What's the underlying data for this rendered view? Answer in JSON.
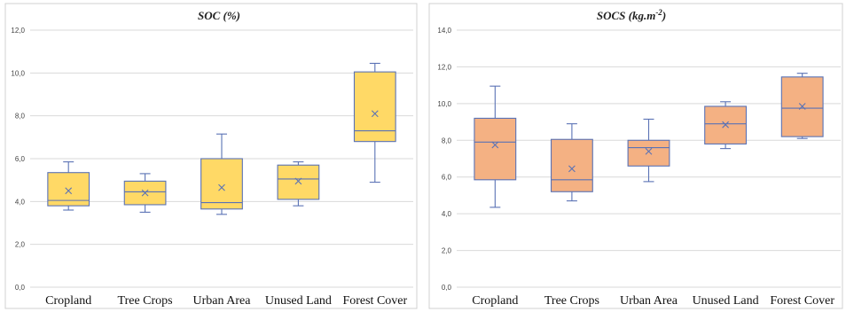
{
  "chart_data": [
    {
      "type": "boxplot",
      "title": "SOC (%)",
      "ylim": [
        0,
        12
      ],
      "yticks": [
        "0,0",
        "2,0",
        "4,0",
        "6,0",
        "8,0",
        "10,0",
        "12,0"
      ],
      "grid": true,
      "box_color": "#ffd966",
      "line_color": "#5a72b5",
      "categories": [
        "Cropland",
        "Tree Crops",
        "Urban Area",
        "Unused Land",
        "Forest Cover"
      ],
      "boxes": [
        {
          "min": 3.6,
          "q1": 3.8,
          "median": 4.05,
          "q3": 5.35,
          "max": 5.85,
          "mean": 4.5
        },
        {
          "min": 3.5,
          "q1": 3.85,
          "median": 4.45,
          "q3": 4.95,
          "max": 5.3,
          "mean": 4.4
        },
        {
          "min": 3.4,
          "q1": 3.65,
          "median": 3.95,
          "q3": 6.0,
          "max": 7.15,
          "mean": 4.65
        },
        {
          "min": 3.8,
          "q1": 4.1,
          "median": 5.05,
          "q3": 5.7,
          "max": 5.85,
          "mean": 4.95
        },
        {
          "min": 4.9,
          "q1": 6.8,
          "median": 7.3,
          "q3": 10.05,
          "max": 10.45,
          "mean": 8.1
        }
      ]
    },
    {
      "type": "boxplot",
      "title_main": "SOCS (kg.m",
      "title_sup": "-2",
      "title_end": ")",
      "ylim": [
        0,
        14
      ],
      "yticks": [
        "0,0",
        "2,0",
        "4,0",
        "6,0",
        "8,0",
        "10,0",
        "12,0",
        "14,0"
      ],
      "grid": true,
      "box_color": "#f4b183",
      "line_color": "#5a72b5",
      "categories": [
        "Cropland",
        "Tree Crops",
        "Urban Area",
        "Unused Land",
        "Forest Cover"
      ],
      "boxes": [
        {
          "min": 4.35,
          "q1": 5.85,
          "median": 7.9,
          "q3": 9.2,
          "max": 10.95,
          "mean": 7.75
        },
        {
          "min": 4.7,
          "q1": 5.2,
          "median": 5.85,
          "q3": 8.05,
          "max": 8.9,
          "mean": 6.45
        },
        {
          "min": 5.75,
          "q1": 6.6,
          "median": 7.6,
          "q3": 8.0,
          "max": 9.15,
          "mean": 7.4
        },
        {
          "min": 7.55,
          "q1": 7.8,
          "median": 8.9,
          "q3": 9.85,
          "max": 10.1,
          "mean": 8.85
        },
        {
          "min": 8.1,
          "q1": 8.2,
          "median": 9.75,
          "q3": 11.45,
          "max": 11.65,
          "mean": 9.85
        }
      ]
    }
  ]
}
